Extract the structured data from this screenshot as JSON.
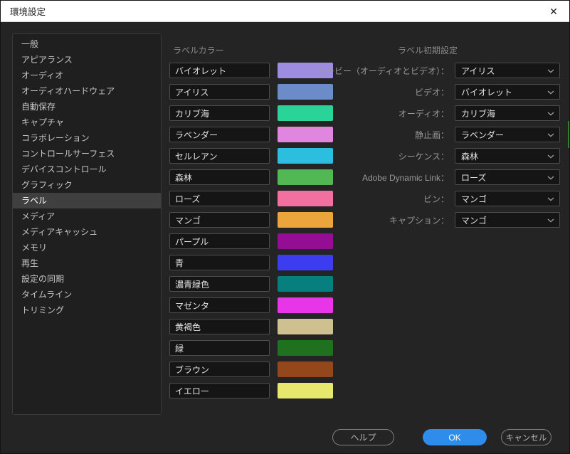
{
  "window": {
    "title": "環境設定"
  },
  "icons": {
    "close": "✕"
  },
  "sidebar": {
    "selected_index": 10,
    "items": [
      "一般",
      "アピアランス",
      "オーディオ",
      "オーディオハードウェア",
      "自動保存",
      "キャプチャ",
      "コラボレーション",
      "コントロールサーフェス",
      "デバイスコントロール",
      "グラフィック",
      "ラベル",
      "メディア",
      "メディアキャッシュ",
      "メモリ",
      "再生",
      "設定の同期",
      "タイムライン",
      "トリミング"
    ]
  },
  "label_colors": {
    "header": "ラベルカラー",
    "items": [
      {
        "name": "バイオレット",
        "color": "#9e8ce1"
      },
      {
        "name": "アイリス",
        "color": "#6b8cc8"
      },
      {
        "name": "カリブ海",
        "color": "#2ad498"
      },
      {
        "name": "ラベンダー",
        "color": "#e186e0"
      },
      {
        "name": "セルレアン",
        "color": "#2cbedf"
      },
      {
        "name": "森林",
        "color": "#51b853"
      },
      {
        "name": "ローズ",
        "color": "#f1709f"
      },
      {
        "name": "マンゴ",
        "color": "#eca53c"
      },
      {
        "name": "パープル",
        "color": "#940d94"
      },
      {
        "name": "青",
        "color": "#3c3cf0"
      },
      {
        "name": "濃青緑色",
        "color": "#077f7f"
      },
      {
        "name": "マゼンタ",
        "color": "#e935e8"
      },
      {
        "name": "黄褐色",
        "color": "#cfc091"
      },
      {
        "name": "緑",
        "color": "#1f701f"
      },
      {
        "name": "ブラウン",
        "color": "#93471b"
      },
      {
        "name": "イエロー",
        "color": "#e6e96e"
      }
    ]
  },
  "label_defaults": {
    "header": "ラベル初期設定",
    "rows": [
      {
        "label": "ムービー（オーディオとビデオ）：",
        "value": "アイリス"
      },
      {
        "label": "ビデオ：",
        "value": "バイオレット"
      },
      {
        "label": "オーディオ：",
        "value": "カリブ海"
      },
      {
        "label": "静止画：",
        "value": "ラベンダー"
      },
      {
        "label": "シーケンス：",
        "value": "森林"
      },
      {
        "label": "Adobe Dynamic Link：",
        "value": "ローズ"
      },
      {
        "label": "ビン：",
        "value": "マンゴ"
      },
      {
        "label": "キャプション：",
        "value": "マンゴ"
      }
    ]
  },
  "footer": {
    "help": "ヘルプ",
    "ok": "OK",
    "cancel": "キャンセル",
    "ok_color": "#2e8ceb"
  }
}
